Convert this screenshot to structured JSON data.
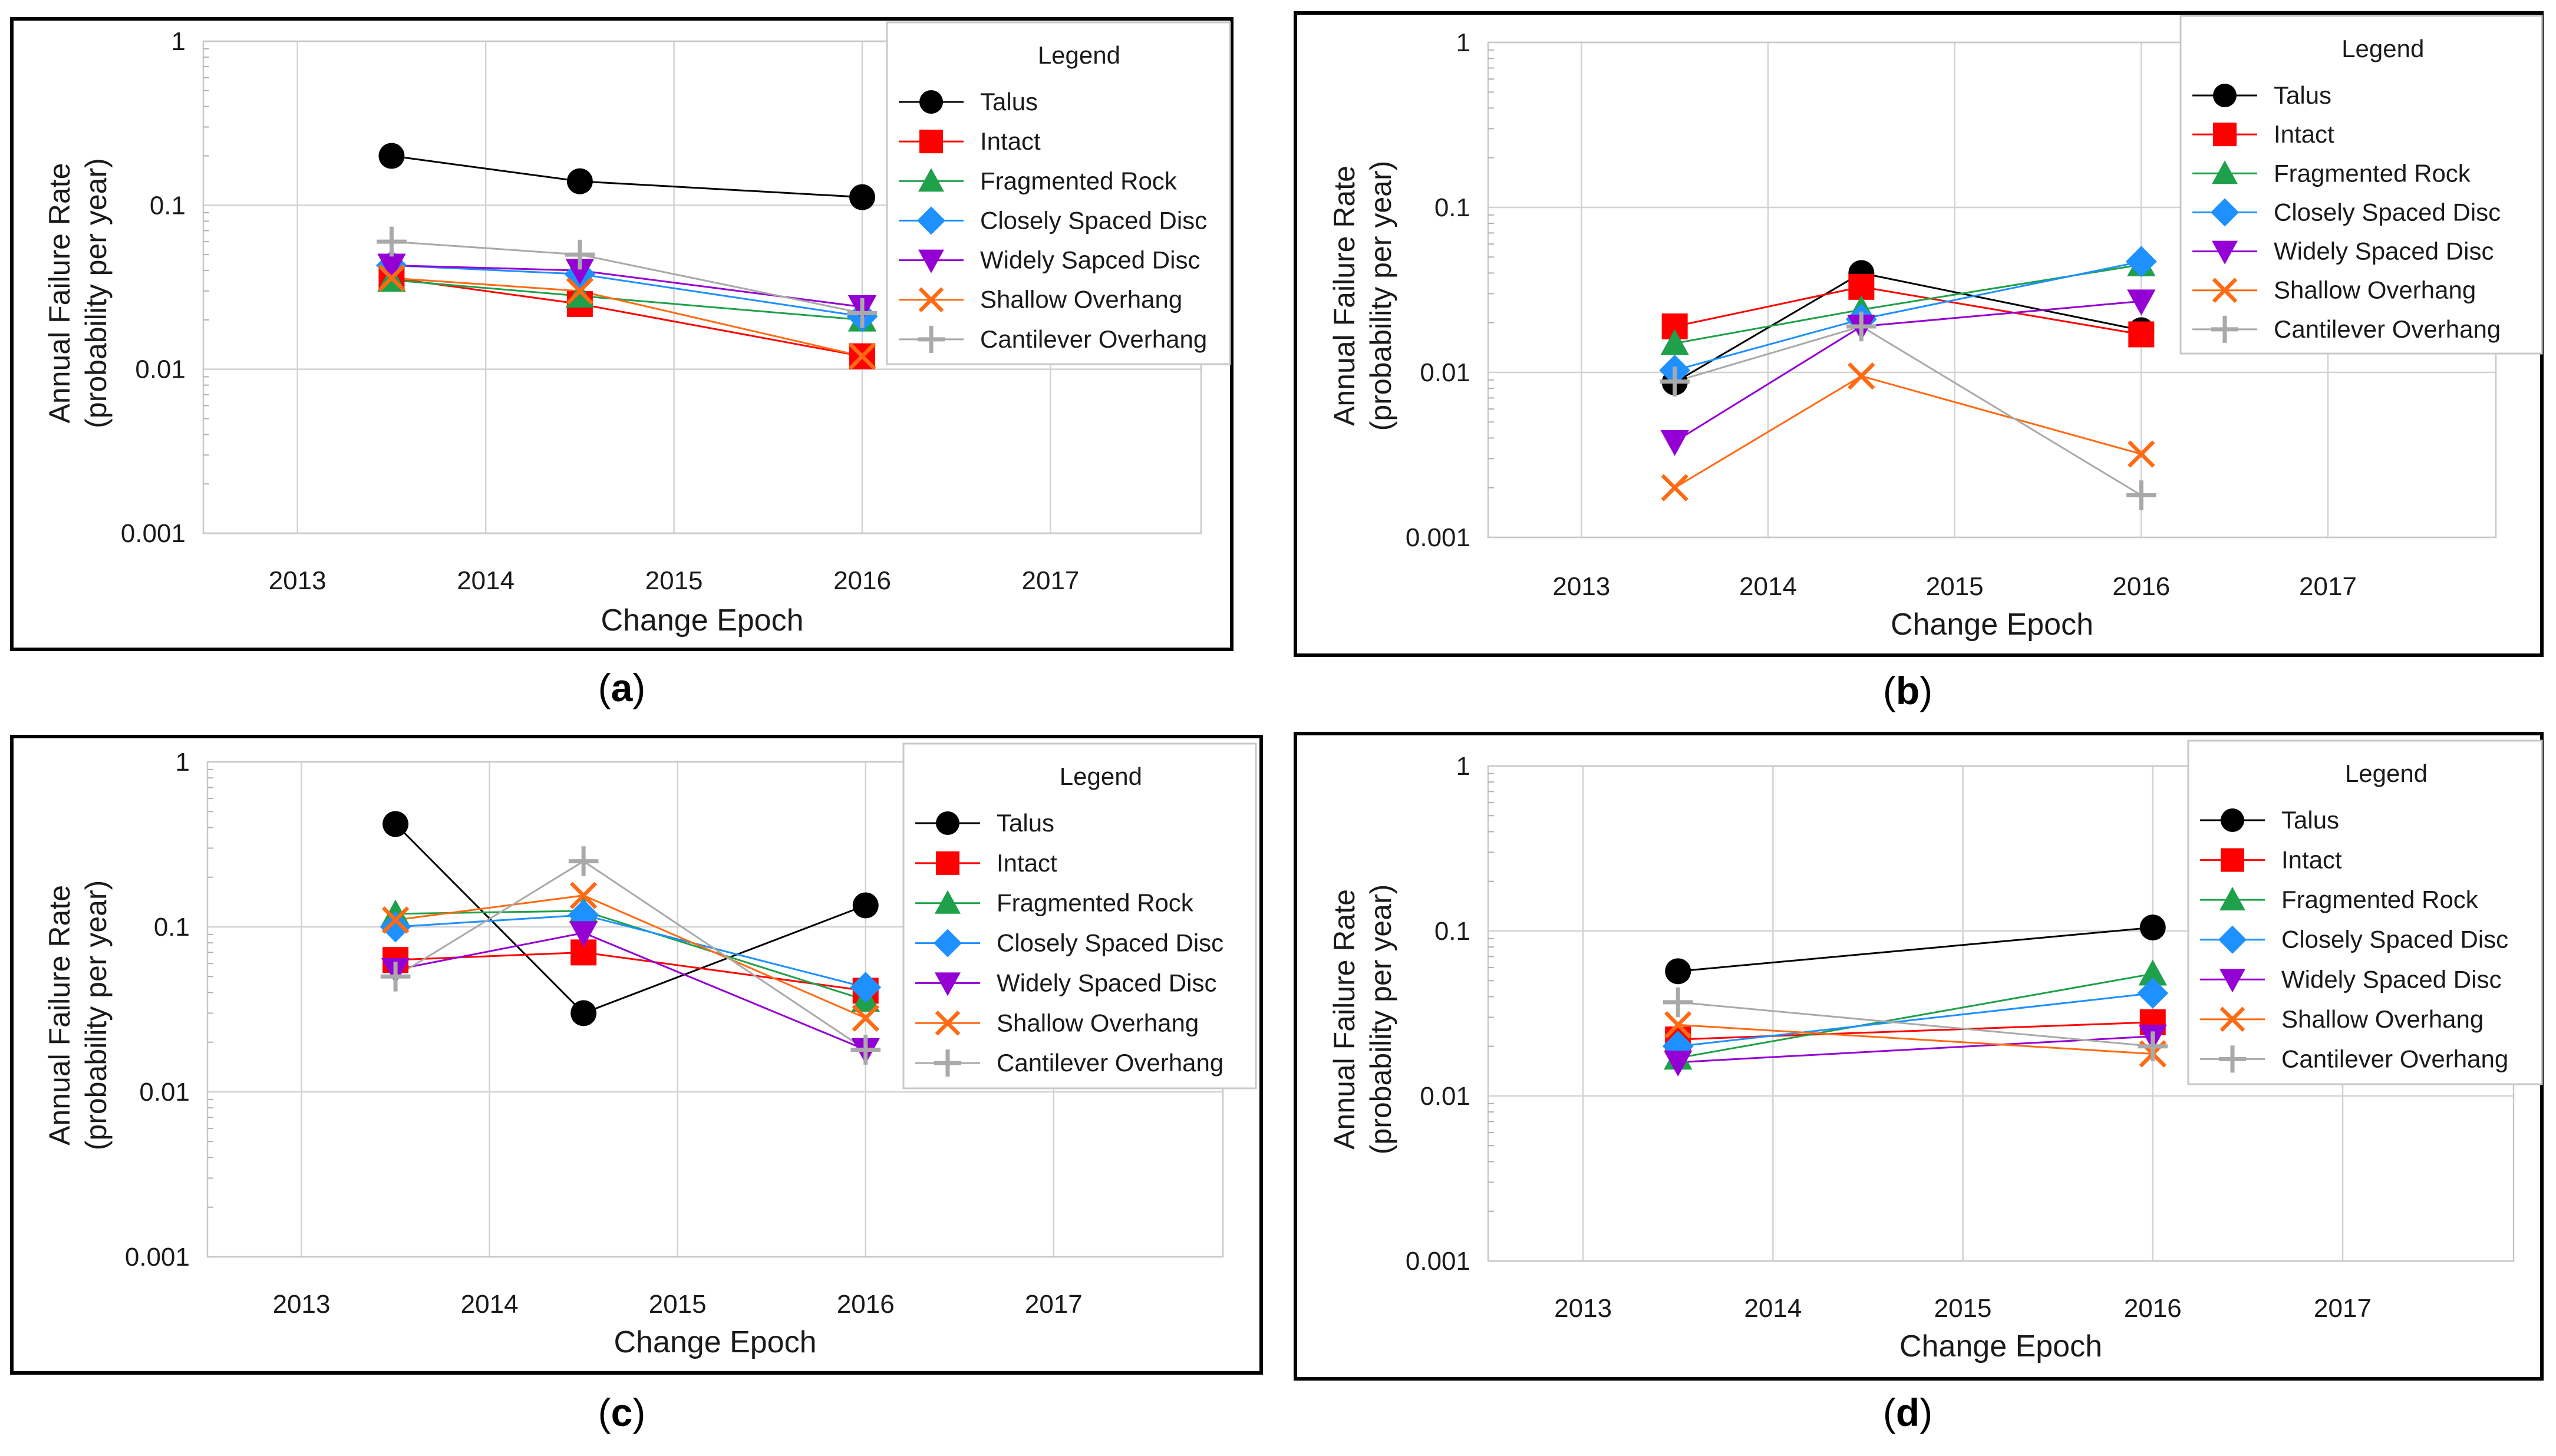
{
  "figure": {
    "legend_title": "Legend",
    "styles": {
      "Talus": {
        "color": "#000000",
        "marker": "circle"
      },
      "Intact": {
        "color": "#ff0000",
        "marker": "square"
      },
      "Fragmented Rock": {
        "color": "#1fa04a",
        "marker": "triangle-up"
      },
      "Closely Spaced Disc": {
        "color": "#1e90ff",
        "marker": "diamond"
      },
      "Widely Spaced Disc": {
        "color": "#9400d3",
        "marker": "triangle-down"
      },
      "Widely Sapced Disc": {
        "color": "#9400d3",
        "marker": "triangle-down"
      },
      "Shallow Overhang": {
        "color": "#ff6a13",
        "marker": "x"
      },
      "Cantilever Overhang": {
        "color": "#a9a9a9",
        "marker": "plus"
      }
    }
  },
  "chart_data": [
    {
      "panel": "(a)",
      "type": "line",
      "yscale": "log",
      "xlabel": "Change Epoch",
      "ylabel": [
        "Annual Failure Rate",
        "(probability per year)"
      ],
      "xlim": [
        2012.5,
        2017.8
      ],
      "ylim": [
        0.001,
        1
      ],
      "xticks": [
        "2013",
        "2014",
        "2015",
        "2016",
        "2017"
      ],
      "yticks": [
        "1",
        "0.1",
        "0.01",
        "0.001"
      ],
      "legend_position": "top-right",
      "series": [
        {
          "name": "Talus",
          "x": [
            2013.5,
            2014.5,
            2016
          ],
          "values": [
            0.2,
            0.14,
            0.112
          ]
        },
        {
          "name": "Intact",
          "x": [
            2013.5,
            2014.5,
            2016
          ],
          "values": [
            0.036,
            0.025,
            0.012
          ]
        },
        {
          "name": "Fragmented Rock",
          "x": [
            2013.5,
            2014.5,
            2016
          ],
          "values": [
            0.035,
            0.028,
            0.02
          ]
        },
        {
          "name": "Closely Spaced Disc",
          "x": [
            2013.5,
            2014.5,
            2016
          ],
          "values": [
            0.043,
            0.038,
            0.021
          ]
        },
        {
          "name": "Widely Sapced Disc",
          "x": [
            2013.5,
            2014.5,
            2016
          ],
          "values": [
            0.043,
            0.04,
            0.024
          ]
        },
        {
          "name": "Shallow Overhang",
          "x": [
            2013.5,
            2014.5,
            2016
          ],
          "values": [
            0.036,
            0.03,
            0.012
          ]
        },
        {
          "name": "Cantilever Overhang",
          "x": [
            2013.5,
            2014.5,
            2016
          ],
          "values": [
            0.06,
            0.05,
            0.022
          ]
        }
      ]
    },
    {
      "panel": "(b)",
      "type": "line",
      "yscale": "log",
      "xlabel": "Change Epoch",
      "ylabel": [
        "Annual Failure Rate",
        "(probability per year)"
      ],
      "xlim": [
        2012.5,
        2017.9
      ],
      "ylim": [
        0.001,
        1
      ],
      "xticks": [
        "2013",
        "2014",
        "2015",
        "2016",
        "2017"
      ],
      "yticks": [
        "1",
        "0.1",
        "0.01",
        "0.001"
      ],
      "legend_position": "top-right",
      "series": [
        {
          "name": "Talus",
          "x": [
            2013.5,
            2014.5,
            2016
          ],
          "values": [
            0.0087,
            0.04,
            0.018
          ]
        },
        {
          "name": "Intact",
          "x": [
            2013.5,
            2014.5,
            2016
          ],
          "values": [
            0.019,
            0.033,
            0.017
          ]
        },
        {
          "name": "Fragmented Rock",
          "x": [
            2013.5,
            2014.5,
            2016
          ],
          "values": [
            0.015,
            0.024,
            0.045
          ]
        },
        {
          "name": "Closely Spaced Disc",
          "x": [
            2013.5,
            2014.5,
            2016
          ],
          "values": [
            0.0103,
            0.021,
            0.047
          ]
        },
        {
          "name": "Widely Spaced Disc",
          "x": [
            2013.5,
            2014.5,
            2016
          ],
          "values": [
            0.0038,
            0.019,
            0.027
          ]
        },
        {
          "name": "Shallow Overhang",
          "x": [
            2013.5,
            2014.5,
            2016
          ],
          "values": [
            0.002,
            0.0095,
            0.0032
          ]
        },
        {
          "name": "Cantilever Overhang",
          "x": [
            2013.5,
            2014.5,
            2016
          ],
          "values": [
            0.0088,
            0.019,
            0.0018
          ]
        }
      ]
    },
    {
      "panel": "(c)",
      "type": "line",
      "yscale": "log",
      "xlabel": "Change Epoch",
      "ylabel": [
        "Annual Failure Rate",
        "(probability per year)"
      ],
      "xlim": [
        2012.5,
        2017.9
      ],
      "ylim": [
        0.001,
        1
      ],
      "xticks": [
        "2013",
        "2014",
        "2015",
        "2016",
        "2017"
      ],
      "yticks": [
        "1",
        "0.1",
        "0.01",
        "0.001"
      ],
      "legend_position": "top-right",
      "series": [
        {
          "name": "Talus",
          "x": [
            2013.5,
            2014.5,
            2016
          ],
          "values": [
            0.42,
            0.03,
            0.135
          ]
        },
        {
          "name": "Intact",
          "x": [
            2013.5,
            2014.5,
            2016
          ],
          "values": [
            0.063,
            0.07,
            0.041
          ]
        },
        {
          "name": "Fragmented Rock",
          "x": [
            2013.5,
            2014.5,
            2016
          ],
          "values": [
            0.12,
            0.125,
            0.036
          ]
        },
        {
          "name": "Closely Spaced Disc",
          "x": [
            2013.5,
            2014.5,
            2016
          ],
          "values": [
            0.1,
            0.118,
            0.043
          ]
        },
        {
          "name": "Widely Spaced Disc",
          "x": [
            2013.5,
            2014.5,
            2016
          ],
          "values": [
            0.055,
            0.092,
            0.018
          ]
        },
        {
          "name": "Shallow Overhang",
          "x": [
            2013.5,
            2014.5,
            2016
          ],
          "values": [
            0.11,
            0.155,
            0.028
          ]
        },
        {
          "name": "Cantilever Overhang",
          "x": [
            2013.5,
            2014.5,
            2016
          ],
          "values": [
            0.05,
            0.25,
            0.018
          ]
        }
      ]
    },
    {
      "panel": "(d)",
      "type": "line",
      "yscale": "log",
      "xlabel": "Change Epoch",
      "ylabel": [
        "Annual Failure Rate",
        "(probability per year)"
      ],
      "xlim": [
        2012.5,
        2017.9
      ],
      "ylim": [
        0.001,
        1
      ],
      "xticks": [
        "2013",
        "2014",
        "2015",
        "2016",
        "2017"
      ],
      "yticks": [
        "1",
        "0.1",
        "0.01",
        "0.001"
      ],
      "legend_position": "top-right",
      "series": [
        {
          "name": "Talus",
          "x": [
            2013.5,
            2016
          ],
          "values": [
            0.057,
            0.105
          ]
        },
        {
          "name": "Intact",
          "x": [
            2013.5,
            2016
          ],
          "values": [
            0.022,
            0.028
          ]
        },
        {
          "name": "Fragmented Rock",
          "x": [
            2013.5,
            2016
          ],
          "values": [
            0.017,
            0.055
          ]
        },
        {
          "name": "Closely Spaced Disc",
          "x": [
            2013.5,
            2016
          ],
          "values": [
            0.02,
            0.042
          ]
        },
        {
          "name": "Widely Spaced Disc",
          "x": [
            2013.5,
            2016
          ],
          "values": [
            0.016,
            0.023
          ]
        },
        {
          "name": "Shallow Overhang",
          "x": [
            2013.5,
            2016
          ],
          "values": [
            0.027,
            0.018
          ]
        },
        {
          "name": "Cantilever Overhang",
          "x": [
            2013.5,
            2016
          ],
          "values": [
            0.037,
            0.02
          ]
        }
      ]
    }
  ]
}
